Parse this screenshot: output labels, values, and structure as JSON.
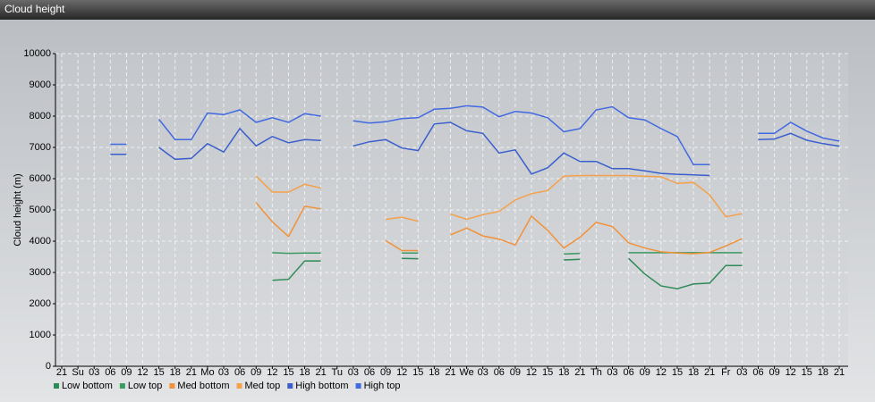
{
  "chart_data": {
    "type": "line",
    "title": "Cloud height",
    "ylabel": "Cloud height (m)",
    "categories": [
      "21",
      "Su",
      "03",
      "06",
      "09",
      "12",
      "15",
      "18",
      "21",
      "Mo",
      "03",
      "06",
      "09",
      "12",
      "15",
      "18",
      "21",
      "Tu",
      "03",
      "06",
      "09",
      "12",
      "15",
      "18",
      "21",
      "We",
      "03",
      "06",
      "09",
      "12",
      "15",
      "18",
      "21",
      "Th",
      "03",
      "06",
      "09",
      "12",
      "15",
      "18",
      "21",
      "Fr",
      "03",
      "06",
      "09",
      "12",
      "15",
      "18",
      "21"
    ],
    "ylim": [
      0,
      10000
    ],
    "yticks": [
      0,
      1000,
      2000,
      3000,
      4000,
      5000,
      6000,
      7000,
      8000,
      9000,
      10000
    ],
    "grid": true,
    "series": [
      {
        "name": "Low bottom",
        "color": "#2e8b57",
        "values": [
          null,
          null,
          null,
          null,
          null,
          null,
          null,
          null,
          null,
          null,
          null,
          null,
          null,
          2750,
          2780,
          3370,
          3370,
          null,
          null,
          null,
          null,
          3450,
          3440,
          null,
          null,
          null,
          null,
          null,
          null,
          null,
          null,
          3400,
          3420,
          null,
          null,
          3450,
          2950,
          2570,
          2480,
          2630,
          2660,
          3220,
          3220,
          null,
          null,
          null,
          null,
          null,
          null
        ]
      },
      {
        "name": "Low top",
        "color": "#3c9a63",
        "values": [
          null,
          null,
          null,
          null,
          null,
          null,
          null,
          null,
          null,
          null,
          null,
          null,
          null,
          3630,
          3610,
          3620,
          3620,
          null,
          null,
          null,
          null,
          3620,
          3620,
          null,
          null,
          null,
          null,
          null,
          null,
          null,
          null,
          3590,
          3610,
          null,
          null,
          3630,
          3630,
          3630,
          3630,
          3630,
          3630,
          3630,
          3630,
          null,
          null,
          null,
          null,
          null,
          null
        ]
      },
      {
        "name": "Med bottom",
        "color": "#f0923a",
        "values": [
          null,
          null,
          null,
          null,
          null,
          null,
          null,
          null,
          null,
          null,
          null,
          null,
          5230,
          4620,
          4150,
          5120,
          5030,
          null,
          null,
          null,
          4020,
          3700,
          3700,
          null,
          4200,
          4420,
          4170,
          4070,
          3880,
          4800,
          4350,
          3780,
          4130,
          4600,
          4470,
          3950,
          3780,
          3660,
          3620,
          3600,
          3640,
          3850,
          4080,
          null,
          null,
          null,
          null,
          null,
          null
        ]
      },
      {
        "name": "Med top",
        "color": "#f5a04a",
        "values": [
          null,
          null,
          null,
          null,
          null,
          null,
          null,
          null,
          null,
          null,
          null,
          null,
          6080,
          5570,
          5570,
          5820,
          5700,
          null,
          null,
          null,
          4700,
          4770,
          4640,
          null,
          4870,
          4700,
          4850,
          4950,
          5320,
          5520,
          5620,
          6080,
          6100,
          6100,
          6100,
          6100,
          6080,
          6060,
          5850,
          5880,
          5480,
          4780,
          4880,
          null,
          null,
          null,
          null,
          null,
          null
        ]
      },
      {
        "name": "High bottom",
        "color": "#3a5fcd",
        "values": [
          null,
          null,
          null,
          6780,
          6780,
          null,
          7000,
          6620,
          6650,
          7120,
          6850,
          7600,
          7050,
          7350,
          7150,
          7250,
          7220,
          null,
          7050,
          7180,
          7250,
          6980,
          6900,
          7750,
          7800,
          7530,
          7450,
          6820,
          6920,
          6150,
          6350,
          6820,
          6550,
          6550,
          6320,
          6320,
          6250,
          6170,
          6140,
          6120,
          6100,
          null,
          null,
          7250,
          7270,
          7450,
          7230,
          7120,
          7040
        ]
      },
      {
        "name": "High top",
        "color": "#4169e1",
        "values": [
          null,
          null,
          null,
          7100,
          7100,
          null,
          7900,
          7250,
          7250,
          8100,
          8050,
          8200,
          7800,
          7950,
          7800,
          8080,
          8000,
          null,
          7850,
          7780,
          7820,
          7920,
          7950,
          8220,
          8250,
          8330,
          8290,
          7980,
          8150,
          8100,
          7950,
          7500,
          7600,
          8200,
          8300,
          7950,
          7880,
          7600,
          7350,
          6450,
          6450,
          null,
          null,
          7450,
          7450,
          7800,
          7520,
          7300,
          7200
        ]
      }
    ]
  }
}
